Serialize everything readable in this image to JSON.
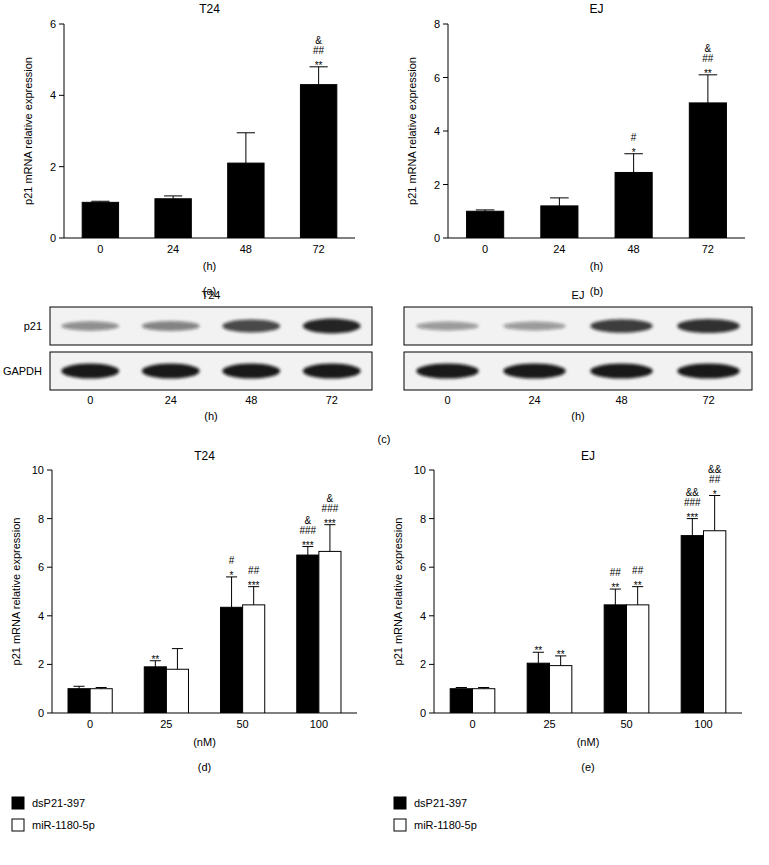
{
  "chart_data": [
    {
      "type": "bar",
      "title": "T24",
      "subtitle": "(a)",
      "x_label": "(h)",
      "y_label": "p21 mRNA relative expression",
      "categories": [
        "0",
        "24",
        "48",
        "72"
      ],
      "series": [
        {
          "color": "#000000",
          "values": [
            1.0,
            1.1,
            2.1,
            4.3
          ],
          "errors": [
            0.03,
            0.08,
            0.85,
            0.5
          ],
          "significance": [
            [],
            [],
            [],
            [
              "&",
              "##",
              "**"
            ]
          ]
        }
      ],
      "ylim": [
        0,
        6
      ],
      "yticks": [
        0,
        2,
        4,
        6
      ],
      "grid": false
    },
    {
      "type": "bar",
      "title": "EJ",
      "subtitle": "(b)",
      "x_label": "(h)",
      "y_label": "p21 mRNA relative expression",
      "categories": [
        "0",
        "24",
        "48",
        "72"
      ],
      "series": [
        {
          "color": "#000000",
          "values": [
            1.0,
            1.2,
            2.45,
            5.05
          ],
          "errors": [
            0.05,
            0.3,
            0.7,
            1.05
          ],
          "significance": [
            [],
            [],
            [
              "#",
              "*"
            ],
            [
              "&",
              "##",
              "**"
            ]
          ]
        }
      ],
      "ylim": [
        0,
        8
      ],
      "yticks": [
        0,
        2,
        4,
        6,
        8
      ],
      "grid": false
    },
    {
      "type": "bar",
      "title": "T24",
      "subtitle": "(d)",
      "x_label": "(nM)",
      "y_label": "p21 mRNA relative expression",
      "categories": [
        "0",
        "25",
        "50",
        "100"
      ],
      "series": [
        {
          "name": "dsP21-397",
          "color": "#000000",
          "values": [
            1.0,
            1.9,
            4.35,
            6.5
          ],
          "errors": [
            0.1,
            0.25,
            1.25,
            0.35
          ],
          "significance": [
            [],
            [
              "**"
            ],
            [
              "#",
              "*"
            ],
            [
              "&",
              "###",
              "***"
            ]
          ]
        },
        {
          "name": "miR-1180-5p",
          "color": "#ffffff",
          "values": [
            1.0,
            1.8,
            4.45,
            6.65
          ],
          "errors": [
            0.05,
            0.85,
            0.75,
            1.1
          ],
          "significance": [
            [],
            [],
            [
              "##",
              "***"
            ],
            [
              "&",
              "###",
              "***"
            ]
          ]
        }
      ],
      "ylim": [
        0,
        10
      ],
      "yticks": [
        0,
        2,
        4,
        6,
        8,
        10
      ],
      "grid": false,
      "legend": "bottom-left"
    },
    {
      "type": "bar",
      "title": "EJ",
      "subtitle": "(e)",
      "x_label": "(nM)",
      "y_label": "p21 mRNA relative expression",
      "categories": [
        "0",
        "25",
        "50",
        "100"
      ],
      "series": [
        {
          "name": "dsP21-397",
          "color": "#000000",
          "values": [
            1.0,
            2.05,
            4.45,
            7.3
          ],
          "errors": [
            0.05,
            0.45,
            0.65,
            0.7
          ],
          "significance": [
            [],
            [
              "**"
            ],
            [
              "##",
              "**"
            ],
            [
              "&&",
              "###",
              "***"
            ]
          ]
        },
        {
          "name": "miR-1180-5p",
          "color": "#ffffff",
          "values": [
            1.0,
            1.95,
            4.45,
            7.5
          ],
          "errors": [
            0.05,
            0.4,
            0.75,
            1.45
          ],
          "significance": [
            [],
            [
              "**"
            ],
            [
              "##",
              "**"
            ],
            [
              "&&",
              "##",
              "*"
            ]
          ]
        }
      ],
      "ylim": [
        0,
        10
      ],
      "yticks": [
        0,
        2,
        4,
        6,
        8,
        10
      ],
      "grid": false,
      "legend": "bottom-left"
    }
  ],
  "blot": {
    "subtitle": "(c)",
    "rows": [
      "p21",
      "GAPDH"
    ],
    "lanes": [
      "0",
      "24",
      "48",
      "72"
    ],
    "x_label": "(h)",
    "panels": [
      {
        "title": "T24",
        "intensity": [
          [
            0.45,
            0.5,
            0.75,
            0.9
          ],
          [
            0.95,
            0.95,
            0.95,
            0.95
          ]
        ]
      },
      {
        "title": "EJ",
        "intensity": [
          [
            0.4,
            0.4,
            0.8,
            0.85
          ],
          [
            0.95,
            0.95,
            0.95,
            0.95
          ]
        ]
      }
    ]
  }
}
